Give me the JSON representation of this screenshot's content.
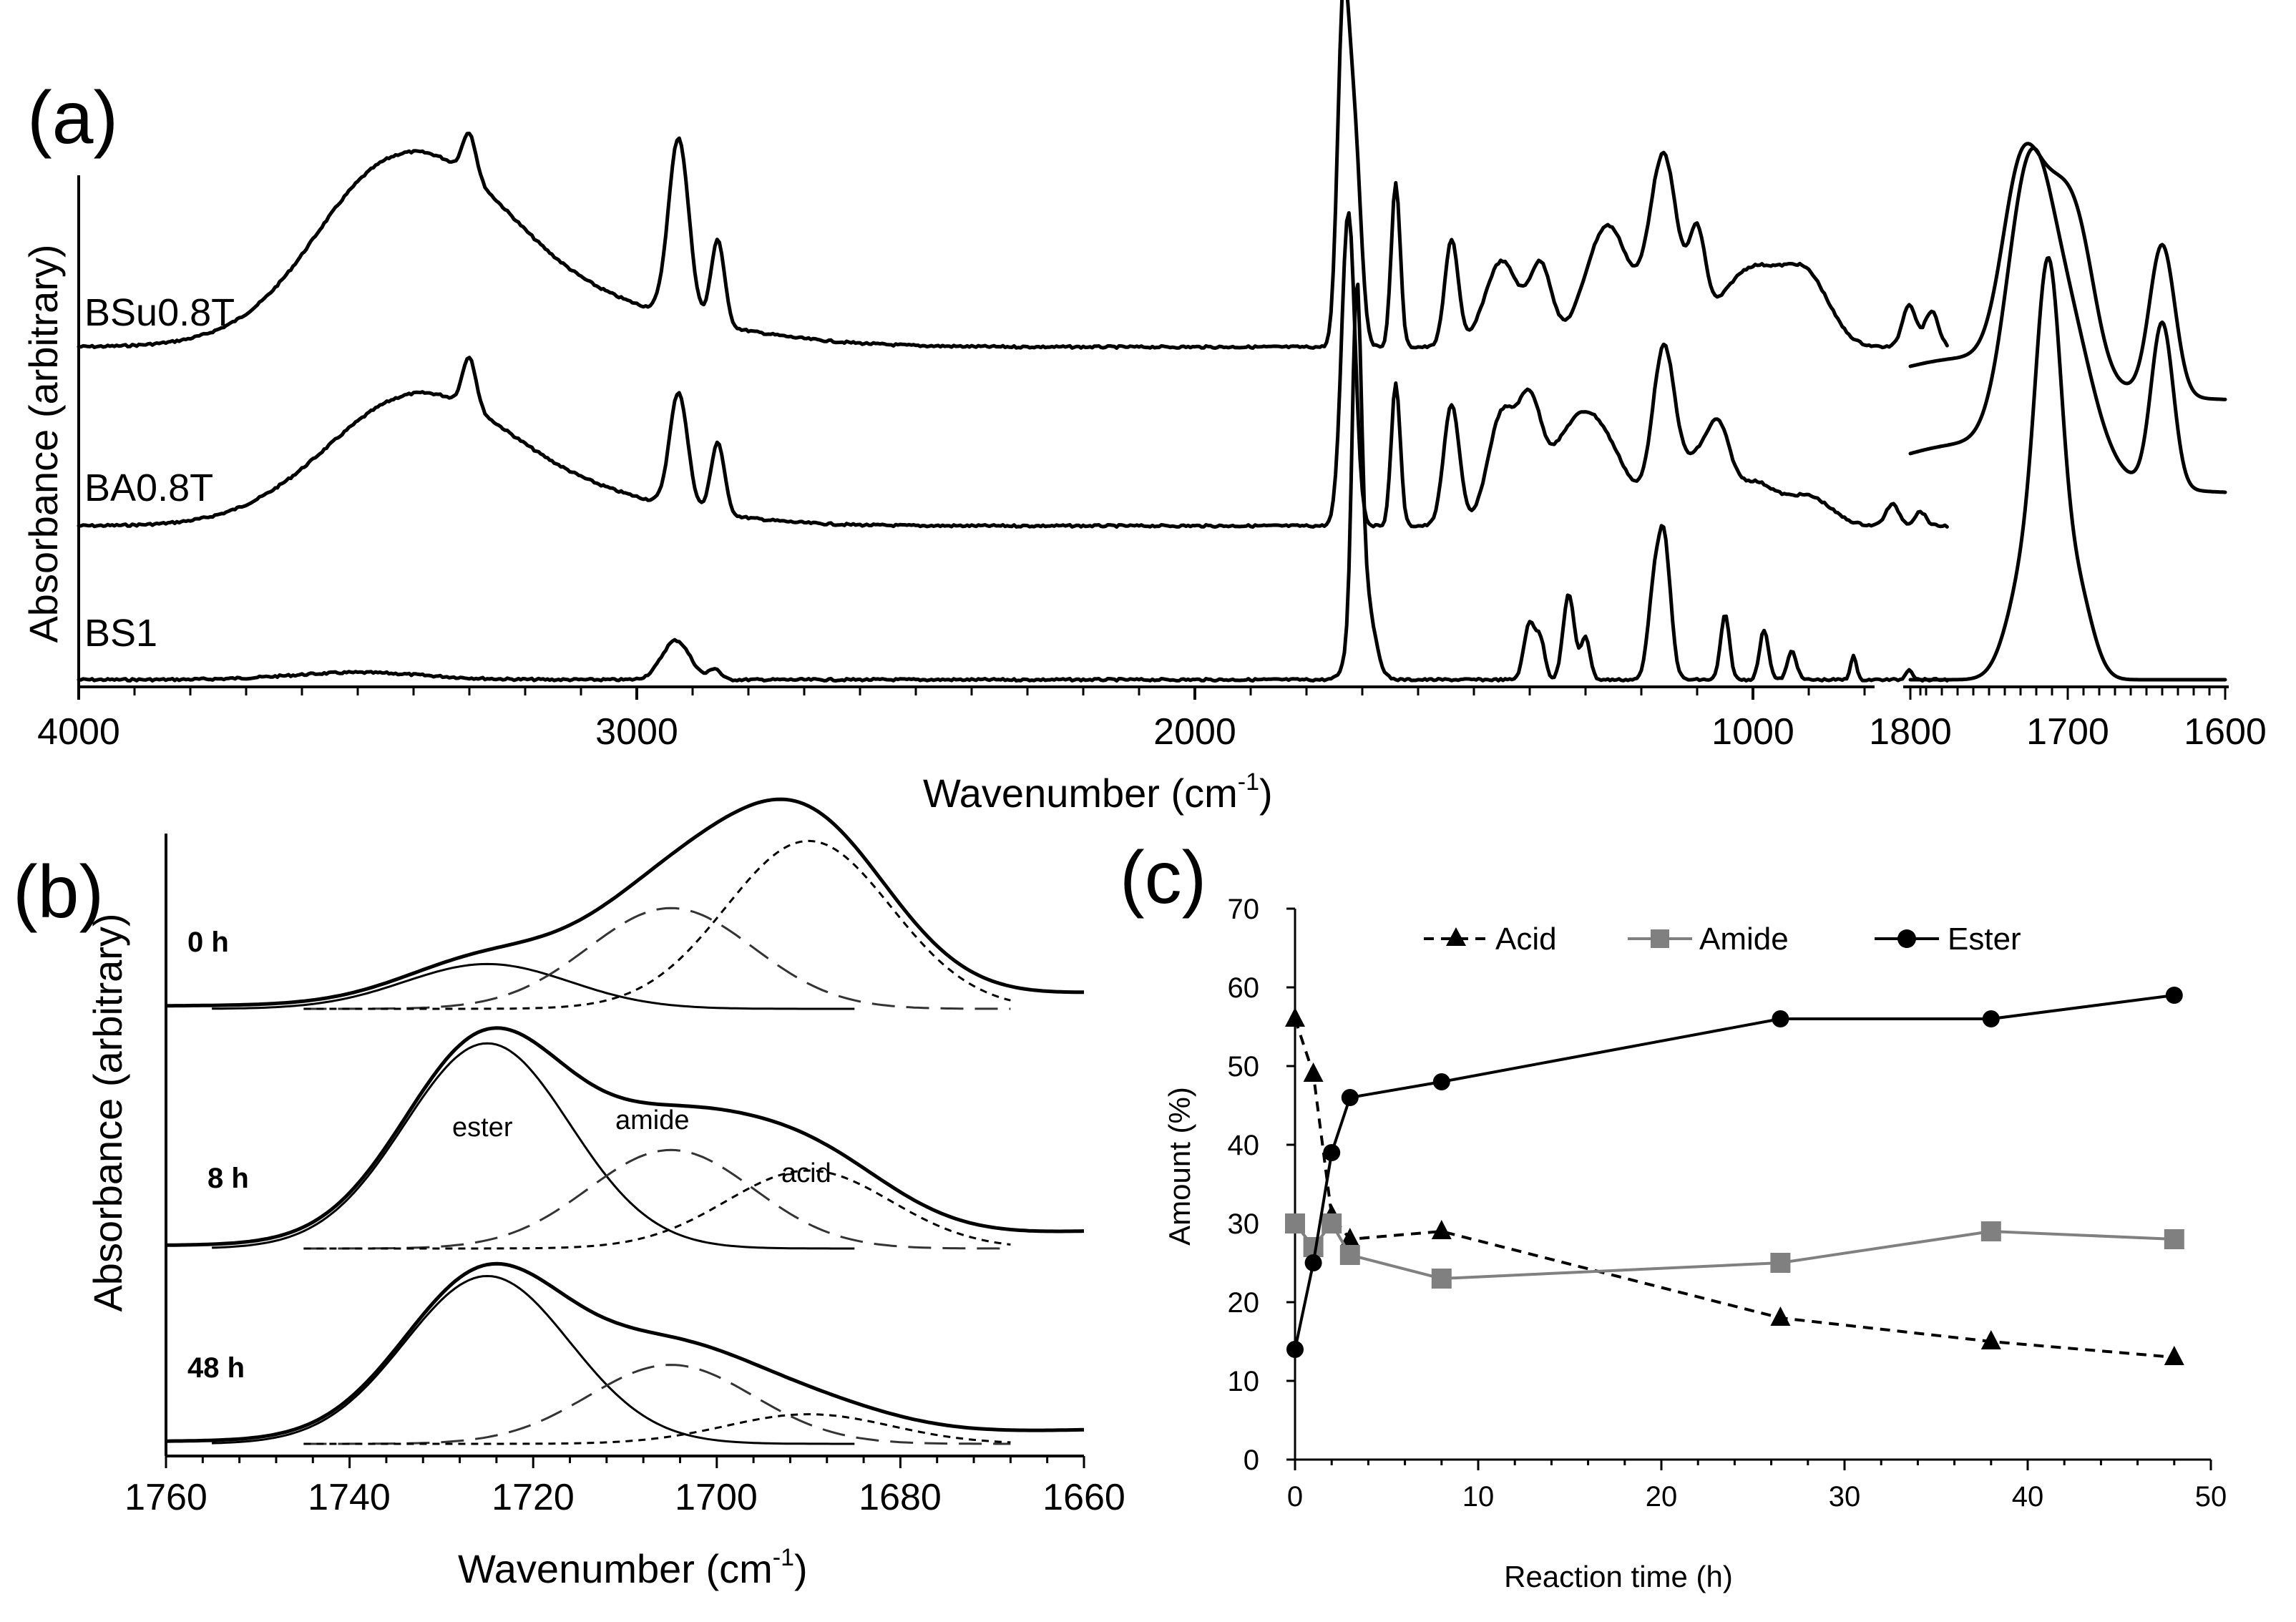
{
  "chart_data": [
    {
      "panel": "(a)",
      "type": "line",
      "title": "",
      "xlabel": "Wavenumber (cm",
      "xlabel_sup": "-1",
      "xlabel_tail": ")",
      "ylabel": "Absorbance (arbitrary)",
      "xlim": [
        4000,
        600
      ],
      "xticks": [
        "4000",
        "3000",
        "2000",
        "1000"
      ],
      "inset_xlim": [
        1800,
        1600
      ],
      "inset_xticks": [
        "1800",
        "1700",
        "1600"
      ],
      "series": [
        {
          "name": "BSu0.8T",
          "peaks": [
            3300,
            2920,
            2850,
            1735,
            1720,
            1640,
            1540,
            1160
          ]
        },
        {
          "name": "BA0.8T",
          "peaks": [
            3300,
            2920,
            2850,
            1725,
            1640,
            1540,
            1160
          ]
        },
        {
          "name": "BS1",
          "peaks": [
            2920,
            1710,
            1400,
            1160
          ]
        }
      ]
    },
    {
      "panel": "(b)",
      "type": "line",
      "title": "",
      "xlabel": "Wavenumber (cm",
      "xlabel_sup": "-1",
      "xlabel_tail": ")",
      "ylabel": "Absorbance (arbitrary)",
      "xlim": [
        1760,
        1660
      ],
      "xticks": [
        "1760",
        "1740",
        "1720",
        "1700",
        "1680",
        "1660"
      ],
      "traces": [
        "0 h",
        "8 h",
        "48 h"
      ],
      "components": [
        {
          "name": "ester",
          "center": 1725
        },
        {
          "name": "amide",
          "center": 1705
        },
        {
          "name": "acid",
          "center": 1690
        }
      ],
      "components_by_trace": [
        {
          "trace": "0 h",
          "ester": 0.2,
          "amide": 0.45,
          "acid": 0.75
        },
        {
          "trace": "8 h",
          "ester": 1.0,
          "amide": 0.48,
          "acid": 0.38
        },
        {
          "trace": "48 h",
          "ester": 0.85,
          "amide": 0.4,
          "acid": 0.15
        }
      ]
    },
    {
      "panel": "(c)",
      "type": "line",
      "title": "",
      "xlabel": "Reaction time (h)",
      "ylabel": "Amount (%)",
      "xlim": [
        0,
        50
      ],
      "ylim": [
        0,
        70
      ],
      "xticks": [
        "0",
        "10",
        "20",
        "30",
        "40",
        "50"
      ],
      "yticks": [
        "0",
        "10",
        "20",
        "30",
        "40",
        "50",
        "60",
        "70"
      ],
      "series": [
        {
          "name": "Acid",
          "style": "dashed",
          "marker": "triangle",
          "color": "#000000",
          "x": [
            0,
            1,
            2,
            3,
            8,
            26.5,
            38,
            48
          ],
          "y": [
            56,
            49,
            31,
            28,
            29,
            18,
            15,
            13
          ]
        },
        {
          "name": "Amide",
          "style": "solid",
          "marker": "square",
          "color": "#808080",
          "x": [
            0,
            1,
            2,
            3,
            8,
            26.5,
            38,
            48
          ],
          "y": [
            30,
            27,
            30,
            26,
            23,
            25,
            29,
            28
          ]
        },
        {
          "name": "Ester",
          "style": "solid",
          "marker": "circle",
          "color": "#000000",
          "x": [
            0,
            1,
            2,
            3,
            8,
            26.5,
            38,
            48
          ],
          "y": [
            14,
            25,
            39,
            46,
            48,
            56,
            56,
            59
          ]
        }
      ],
      "legend": [
        "Acid",
        "Amide",
        "Ester"
      ]
    }
  ]
}
